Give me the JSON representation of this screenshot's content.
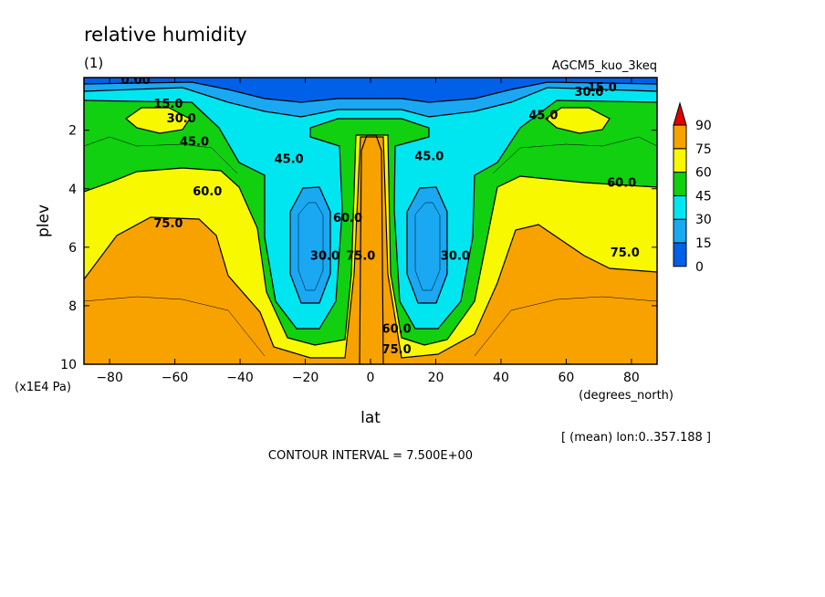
{
  "chart_data": {
    "type": "heatmap",
    "title": "relative humidity",
    "subtitle": "(1)",
    "model_label": "AGCM5_kuo_3keq",
    "xlabel": "lat",
    "xunit": "(degrees_north)",
    "ylabel": "plev",
    "yunit": "(x1E4 Pa)",
    "xlim": [
      -87.86,
      87.86
    ],
    "ylim": [
      10,
      0.2
    ],
    "xticks": [
      "−80",
      "−60",
      "−40",
      "−20",
      "0",
      "20",
      "40",
      "60",
      "80"
    ],
    "xtick_values": [
      -80,
      -60,
      -40,
      -20,
      0,
      20,
      40,
      60,
      80
    ],
    "yticks": [
      "2",
      "4",
      "6",
      "8",
      "10"
    ],
    "ytick_values": [
      2,
      4,
      6,
      8,
      10
    ],
    "mean_note": "[ (mean) lon:0..357.188 ]",
    "contour_interval": "CONTOUR INTERVAL = 7.500E+00",
    "colorbar": {
      "levels": [
        "0",
        "15",
        "30",
        "45",
        "60",
        "75",
        "90"
      ],
      "colors": [
        "#0060e8",
        "#1aa8f2",
        "#00e6f0",
        "#10d010",
        "#f8f800",
        "#f8a200",
        "#e00000"
      ]
    },
    "contour_labels": [
      {
        "text": "0.00",
        "x": -72,
        "y": 0.3
      },
      {
        "text": "15.0",
        "x": -62,
        "y": 1.1
      },
      {
        "text": "30.0",
        "x": -58,
        "y": 1.6
      },
      {
        "text": "45.0",
        "x": -54,
        "y": 2.4
      },
      {
        "text": "60.0",
        "x": -50,
        "y": 4.1
      },
      {
        "text": "75.0",
        "x": -62,
        "y": 5.2
      },
      {
        "text": "45.0",
        "x": -25,
        "y": 3.0
      },
      {
        "text": "60.0",
        "x": -7,
        "y": 5.0
      },
      {
        "text": "30.0",
        "x": -14,
        "y": 6.3
      },
      {
        "text": "75.0",
        "x": -3,
        "y": 6.3
      },
      {
        "text": "45.0",
        "x": 18,
        "y": 2.9
      },
      {
        "text": "30.0",
        "x": 26,
        "y": 6.3
      },
      {
        "text": "15.0",
        "x": 71,
        "y": 0.55
      },
      {
        "text": "30.0",
        "x": 67,
        "y": 0.7
      },
      {
        "text": "45.0",
        "x": 53,
        "y": 1.5
      },
      {
        "text": "60.0",
        "x": 77,
        "y": 3.8
      },
      {
        "text": "75.0",
        "x": 78,
        "y": 6.2
      },
      {
        "text": "60.0",
        "x": 8,
        "y": 8.8
      },
      {
        "text": "75.0",
        "x": 8,
        "y": 9.5
      }
    ]
  }
}
